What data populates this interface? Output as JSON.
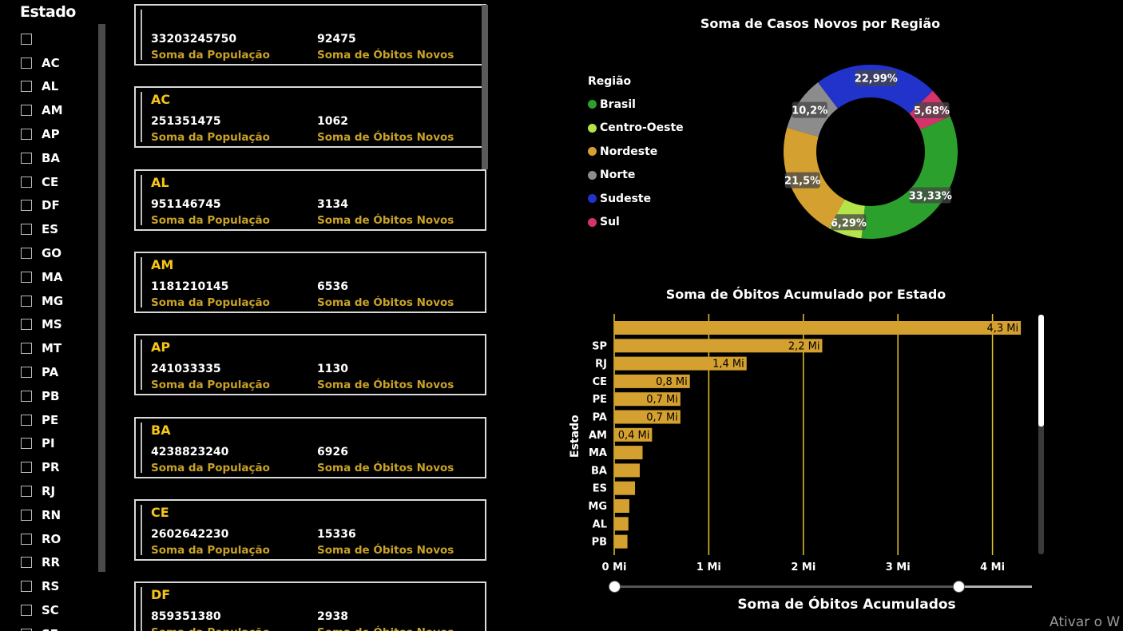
{
  "slicer": {
    "title": "Estado",
    "items": [
      "",
      "AC",
      "AL",
      "AM",
      "AP",
      "BA",
      "CE",
      "DF",
      "ES",
      "GO",
      "MA",
      "MG",
      "MS",
      "MT",
      "PA",
      "PB",
      "PE",
      "PI",
      "PR",
      "RJ",
      "RN",
      "RO",
      "RR",
      "RS",
      "SC",
      "SE"
    ]
  },
  "cards": {
    "pop_label": "Soma da População",
    "obitos_label": "Soma de Óbitos Novos",
    "items": [
      {
        "name": "",
        "pop": "33203245750",
        "obitos": "92475"
      },
      {
        "name": "AC",
        "pop": "251351475",
        "obitos": "1062"
      },
      {
        "name": "AL",
        "pop": "951146745",
        "obitos": "3134"
      },
      {
        "name": "AM",
        "pop": "1181210145",
        "obitos": "6536"
      },
      {
        "name": "AP",
        "pop": "241033335",
        "obitos": "1130"
      },
      {
        "name": "BA",
        "pop": "4238823240",
        "obitos": "6926"
      },
      {
        "name": "CE",
        "pop": "2602642230",
        "obitos": "15336"
      },
      {
        "name": "DF",
        "pop": "859351380",
        "obitos": "2938"
      }
    ]
  },
  "donut": {
    "title": "Soma de Casos Novos por Região",
    "legend_title": "Região"
  },
  "bars": {
    "title": "Soma de Óbitos Acumulado por Estado",
    "y_title": "Estado",
    "x_title": "Soma de Óbitos Acumulados"
  },
  "chart_data": [
    {
      "type": "pie",
      "title": "Soma de Casos Novos por Região",
      "legend_title": "Região",
      "categories": [
        "Brasil",
        "Centro-Oeste",
        "Nordeste",
        "Norte",
        "Sudeste",
        "Sul"
      ],
      "values": [
        33.33,
        6.29,
        21.5,
        10.2,
        22.99,
        5.68
      ],
      "labels": [
        "33,33%",
        "6,29%",
        "21,5%",
        "10,2%",
        "22,99%",
        "5,68%"
      ],
      "colors": [
        "#2ca02c",
        "#b5e34a",
        "#d4a030",
        "#8c8c8c",
        "#2233cc",
        "#d6336c"
      ]
    },
    {
      "type": "bar",
      "orientation": "horizontal",
      "title": "Soma de Óbitos Acumulado por Estado",
      "xlabel": "Soma de Óbitos Acumulados",
      "ylabel": "Estado",
      "categories": [
        "",
        "SP",
        "RJ",
        "CE",
        "PE",
        "PA",
        "AM",
        "MA",
        "BA",
        "ES",
        "MG",
        "AL",
        "PB"
      ],
      "values": [
        4.3,
        2.2,
        1.4,
        0.8,
        0.7,
        0.7,
        0.4,
        0.3,
        0.27,
        0.22,
        0.16,
        0.15,
        0.14
      ],
      "labels": [
        "4,3 Mi",
        "2,2 Mi",
        "1,4 Mi",
        "0,8 Mi",
        "0,7 Mi",
        "0,7 Mi",
        "0,4 Mi",
        "",
        "",
        "",
        "",
        "",
        ""
      ],
      "xticks": [
        "0 Mi",
        "1 Mi",
        "2 Mi",
        "3 Mi",
        "4 Mi"
      ],
      "xlim": [
        0,
        4.4
      ],
      "bar_color": "#d4a030",
      "grid_color": "#e6c229"
    }
  ],
  "watermark": "Ativar o W"
}
